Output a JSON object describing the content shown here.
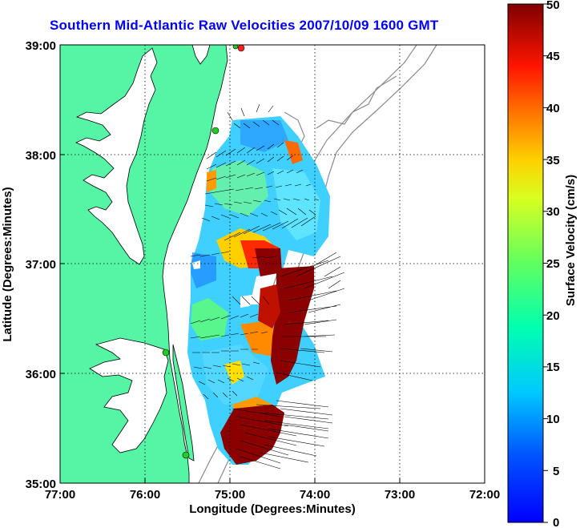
{
  "title": "Southern Mid-Atlantic Raw Velocities 2007/10/09 1600 GMT",
  "x_axis": {
    "label": "Longitude (Degrees:Minutes)",
    "ticks": [
      "77:00",
      "76:00",
      "75:00",
      "74:00",
      "73:00",
      "72:00"
    ]
  },
  "y_axis": {
    "label": "Latitude (Degrees:Minutes)",
    "ticks": [
      "39:00",
      "38:00",
      "37:00",
      "36:00",
      "35:00"
    ]
  },
  "colorbar": {
    "label": "Surface Velocity (cm/s)",
    "ticks": [
      "50",
      "45",
      "40",
      "35",
      "30",
      "25",
      "20",
      "15",
      "10",
      "5",
      "0"
    ],
    "min": 0,
    "max": 50,
    "colormap": "jet"
  },
  "colors": {
    "land": "#55f5a5",
    "title": "#0000ff",
    "station_marker": "#22cc22",
    "station_marker_alt": "#ff2222",
    "bathymetry": "#888888"
  }
}
